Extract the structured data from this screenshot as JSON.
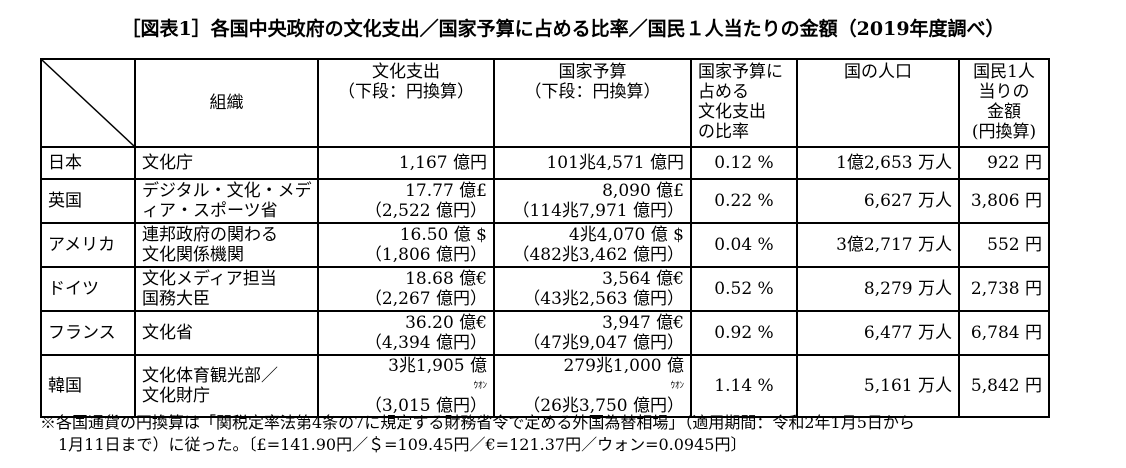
{
  "title": "［図表1］各国中央政府の文化支出／国家予算に占める比率／国民１人当たりの金額（2019年度調べ）",
  "headers": {
    "org": "組織",
    "culture": [
      "文化支出",
      "（下段：円換算）"
    ],
    "budget": [
      "国家予算",
      "（下段：円換算）"
    ],
    "ratio": [
      "国家予算に",
      "占める",
      "文化支出",
      "の比率"
    ],
    "population": "国の人口",
    "per_capita": [
      "国民1人",
      "当りの",
      "金額",
      "(円換算)"
    ]
  },
  "rows": [
    {
      "country": "日本",
      "org": [
        "文化庁"
      ],
      "culture": [
        "1,167 億円"
      ],
      "budget": [
        "101兆4,571 億円"
      ],
      "ratio": "0.12 %",
      "population": "1億2,653 万人",
      "per_capita": "922 円"
    },
    {
      "country": "英国",
      "org": [
        "デジタル・文化・メデ",
        "ィア・スポーツ省"
      ],
      "culture": [
        "17.77 億£",
        "（2,522 億円）"
      ],
      "budget": [
        "8,090 億£",
        "（114兆7,971 億円）"
      ],
      "ratio": "0.22 %",
      "population": "6,627 万人",
      "per_capita": "3,806 円"
    },
    {
      "country": "アメリカ",
      "org": [
        "連邦政府の関わる",
        "文化関係機関"
      ],
      "culture": [
        "16.50 億 $",
        "（1,806 億円）"
      ],
      "budget": [
        "4兆4,070 億 $",
        "（482兆3,462 億円）"
      ],
      "ratio": "0.04 %",
      "population": "3億2,717 万人",
      "per_capita": "552 円"
    },
    {
      "country": "ドイツ",
      "org": [
        "文化メディア担当",
        "国務大臣"
      ],
      "culture": [
        "18.68 億€",
        "（2,267 億円）"
      ],
      "budget": [
        "3,564 億€",
        "（43兆2,563 億円）"
      ],
      "ratio": "0.52 %",
      "population": "8,279 万人",
      "per_capita": "2,738 円"
    },
    {
      "country": "フランス",
      "org": [
        "文化省"
      ],
      "culture": [
        "36.20 億€",
        "（4,394 億円）"
      ],
      "budget": [
        "3,947 億€",
        "（47兆9,047 億円）"
      ],
      "ratio": "0.92 %",
      "population": "6,477 万人",
      "per_capita": "6,784 円"
    },
    {
      "country": "韓国",
      "org": [
        "文化体育観光部／",
        "文化財庁"
      ],
      "culture": [
        "3兆1,905 億",
        "（3,015 億円）"
      ],
      "budget": [
        "279兆1,000 億",
        "（26兆3,750 億円）"
      ],
      "won": "ｳｵﾝ",
      "ratio": "1.14 %",
      "population": "5,161 万人",
      "per_capita": "5,842 円"
    }
  ],
  "note": [
    "※各国通貨の円換算は「関税定率法第4条の7に規定する財務省令で定める外国為替相場」（適用期間：令和2年1月5日から",
    "1月11日まで）に従った。〔£=141.90円／＄=109.45円／€=121.37円／ウォン=0.0945円〕"
  ]
}
